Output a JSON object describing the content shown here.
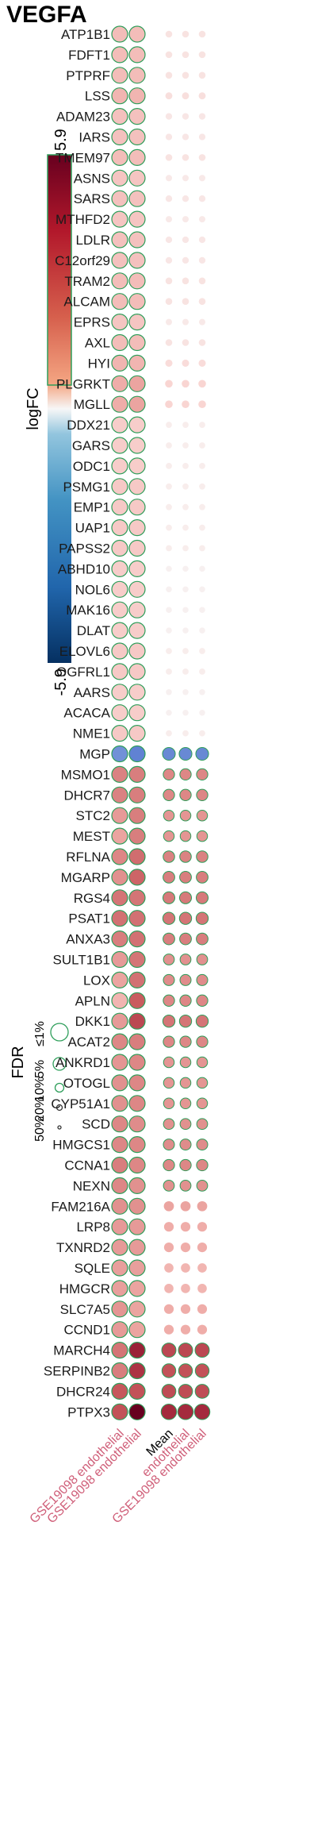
{
  "title": "VEGFA",
  "chart_data": {
    "type": "dot-matrix",
    "color_scale": {
      "label": "logFC",
      "min": -5.9,
      "max": 5.9,
      "min_label": "-5.9",
      "max_label": "5.9",
      "low_color": "#053061",
      "mid_color": "#f7f7f7",
      "high_color": "#67001f"
    },
    "size_legend": {
      "title": "FDR",
      "levels": [
        "50%",
        "20%",
        "10%",
        "5%",
        "≤1%"
      ]
    },
    "columns_left": [
      "GSE19098 endothelial",
      "GSE19098 endothelial"
    ],
    "columns_right": [
      "Mean",
      "endothelial",
      "GSE19098 endothelial"
    ],
    "genes": [
      {
        "name": "ATP1B1",
        "left": [
          1.6,
          1.6
        ],
        "right": [
          0.6,
          0.6,
          0.6
        ]
      },
      {
        "name": "FDFT1",
        "left": [
          1.6,
          1.6
        ],
        "right": [
          0.6,
          0.6,
          0.6
        ]
      },
      {
        "name": "PTPRF",
        "left": [
          1.6,
          1.6
        ],
        "right": [
          0.6,
          0.6,
          0.6
        ]
      },
      {
        "name": "LSS",
        "left": [
          1.8,
          1.8
        ],
        "right": [
          0.7,
          0.7,
          0.7
        ]
      },
      {
        "name": "ADAM23",
        "left": [
          1.5,
          1.5
        ],
        "right": [
          0.5,
          0.5,
          0.5
        ]
      },
      {
        "name": "IARS",
        "left": [
          1.5,
          1.5
        ],
        "right": [
          0.5,
          0.5,
          0.5
        ]
      },
      {
        "name": "TMEM97",
        "left": [
          1.6,
          1.6
        ],
        "right": [
          0.6,
          0.6,
          0.6
        ]
      },
      {
        "name": "ASNS",
        "left": [
          1.4,
          1.4
        ],
        "right": [
          0.4,
          0.4,
          0.4
        ]
      },
      {
        "name": "SARS",
        "left": [
          1.5,
          1.5
        ],
        "right": [
          0.5,
          0.5,
          0.5
        ]
      },
      {
        "name": "MTHFD2",
        "left": [
          1.4,
          1.4
        ],
        "right": [
          0.4,
          0.4,
          0.4
        ]
      },
      {
        "name": "LDLR",
        "left": [
          1.5,
          1.5
        ],
        "right": [
          0.5,
          0.5,
          0.5
        ]
      },
      {
        "name": "C12orf29",
        "left": [
          1.5,
          1.5
        ],
        "right": [
          0.5,
          0.5,
          0.5
        ]
      },
      {
        "name": "TRAM2",
        "left": [
          1.6,
          1.6
        ],
        "right": [
          0.6,
          0.6,
          0.6
        ]
      },
      {
        "name": "ALCAM",
        "left": [
          1.6,
          1.6
        ],
        "right": [
          0.6,
          0.6,
          0.6
        ]
      },
      {
        "name": "EPRS",
        "left": [
          1.4,
          1.4
        ],
        "right": [
          0.4,
          0.4,
          0.4
        ]
      },
      {
        "name": "AXL",
        "left": [
          1.6,
          1.6
        ],
        "right": [
          0.6,
          0.6,
          0.6
        ]
      },
      {
        "name": "HYI",
        "left": [
          1.8,
          1.8
        ],
        "right": [
          0.8,
          0.8,
          0.8
        ]
      },
      {
        "name": "PLGRKT",
        "left": [
          2.0,
          2.2
        ],
        "right": [
          1.0,
          1.0,
          1.0
        ]
      },
      {
        "name": "MGLL",
        "left": [
          2.0,
          2.2
        ],
        "right": [
          1.0,
          1.0,
          1.0
        ]
      },
      {
        "name": "DDX21",
        "left": [
          1.2,
          1.2
        ],
        "right": [
          0.3,
          0.3,
          0.3
        ]
      },
      {
        "name": "GARS",
        "left": [
          1.2,
          1.2
        ],
        "right": [
          0.3,
          0.3,
          0.3
        ]
      },
      {
        "name": "ODC1",
        "left": [
          1.2,
          1.2
        ],
        "right": [
          0.3,
          0.3,
          0.3
        ]
      },
      {
        "name": "PSMG1",
        "left": [
          1.3,
          1.3
        ],
        "right": [
          0.3,
          0.3,
          0.3
        ]
      },
      {
        "name": "EMP1",
        "left": [
          1.3,
          1.3
        ],
        "right": [
          0.3,
          0.3,
          0.3
        ]
      },
      {
        "name": "UAP1",
        "left": [
          1.3,
          1.3
        ],
        "right": [
          0.3,
          0.3,
          0.3
        ]
      },
      {
        "name": "PAPSS2",
        "left": [
          1.3,
          1.3
        ],
        "right": [
          0.3,
          0.3,
          0.3
        ]
      },
      {
        "name": "ABHD10",
        "left": [
          1.2,
          1.2
        ],
        "right": [
          0.2,
          0.2,
          0.2
        ]
      },
      {
        "name": "NOL6",
        "left": [
          1.2,
          1.2
        ],
        "right": [
          0.2,
          0.2,
          0.2
        ]
      },
      {
        "name": "MAK16",
        "left": [
          1.2,
          1.2
        ],
        "right": [
          0.2,
          0.2,
          0.2
        ]
      },
      {
        "name": "DLAT",
        "left": [
          1.2,
          1.2
        ],
        "right": [
          0.2,
          0.2,
          0.2
        ]
      },
      {
        "name": "ELOVL6",
        "left": [
          1.3,
          1.3
        ],
        "right": [
          0.3,
          0.3,
          0.3
        ]
      },
      {
        "name": "OGFRL1",
        "left": [
          1.3,
          1.3
        ],
        "right": [
          0.3,
          0.3,
          0.3
        ]
      },
      {
        "name": "AARS",
        "left": [
          1.2,
          1.2
        ],
        "right": [
          0.2,
          0.2,
          0.2
        ]
      },
      {
        "name": "ACACA",
        "left": [
          1.2,
          1.2
        ],
        "right": [
          0.2,
          0.2,
          0.2
        ]
      },
      {
        "name": "NME1",
        "left": [
          1.3,
          1.3
        ],
        "right": [
          0.3,
          0.3,
          0.3
        ]
      },
      {
        "name": "MGP",
        "left": [
          -3.2,
          -3.8
        ],
        "right": [
          -3.5,
          -3.5,
          -3.5
        ]
      },
      {
        "name": "MSMO1",
        "left": [
          2.9,
          3.0
        ],
        "right": [
          2.8,
          2.8,
          2.8
        ]
      },
      {
        "name": "DHCR7",
        "left": [
          2.9,
          3.0
        ],
        "right": [
          2.8,
          2.8,
          2.8
        ]
      },
      {
        "name": "STC2",
        "left": [
          2.4,
          3.0
        ],
        "right": [
          2.5,
          2.5,
          2.5
        ]
      },
      {
        "name": "MEST",
        "left": [
          2.2,
          3.0
        ],
        "right": [
          2.5,
          2.5,
          2.5
        ]
      },
      {
        "name": "RFLNA",
        "left": [
          2.8,
          3.4
        ],
        "right": [
          2.9,
          2.9,
          2.9
        ]
      },
      {
        "name": "MGARP",
        "left": [
          2.6,
          3.6
        ],
        "right": [
          3.0,
          3.0,
          3.0
        ]
      },
      {
        "name": "RGS4",
        "left": [
          3.2,
          3.2
        ],
        "right": [
          3.1,
          3.1,
          3.1
        ]
      },
      {
        "name": "PSAT1",
        "left": [
          3.3,
          3.3
        ],
        "right": [
          3.2,
          3.2,
          3.2
        ]
      },
      {
        "name": "ANXA3",
        "left": [
          3.0,
          3.3
        ],
        "right": [
          3.0,
          3.0,
          3.0
        ]
      },
      {
        "name": "SULT1B1",
        "left": [
          2.4,
          3.2
        ],
        "right": [
          2.6,
          2.6,
          2.6
        ]
      },
      {
        "name": "LOX",
        "left": [
          2.2,
          3.3
        ],
        "right": [
          2.7,
          2.7,
          2.7
        ]
      },
      {
        "name": "APLN",
        "left": [
          1.8,
          3.8
        ],
        "right": [
          2.8,
          2.8,
          2.8
        ]
      },
      {
        "name": "DKK1",
        "left": [
          2.4,
          4.2
        ],
        "right": [
          3.2,
          3.2,
          3.2
        ]
      },
      {
        "name": "ACAT2",
        "left": [
          2.8,
          3.0
        ],
        "right": [
          2.8,
          2.8,
          2.8
        ]
      },
      {
        "name": "ANKRD1",
        "left": [
          2.5,
          2.8
        ],
        "right": [
          2.5,
          2.5,
          2.5
        ]
      },
      {
        "name": "OTOGL",
        "left": [
          2.6,
          2.8
        ],
        "right": [
          2.5,
          2.5,
          2.5
        ]
      },
      {
        "name": "CYP51A1",
        "left": [
          2.6,
          2.8
        ],
        "right": [
          2.5,
          2.5,
          2.5
        ]
      },
      {
        "name": "SCD",
        "left": [
          2.8,
          2.7
        ],
        "right": [
          2.6,
          2.6,
          2.6
        ]
      },
      {
        "name": "HMGCS1",
        "left": [
          2.8,
          2.8
        ],
        "right": [
          2.7,
          2.7,
          2.7
        ]
      },
      {
        "name": "CCNA1",
        "left": [
          3.0,
          2.8
        ],
        "right": [
          2.8,
          2.8,
          2.8
        ]
      },
      {
        "name": "NEXN",
        "left": [
          2.8,
          2.6
        ],
        "right": [
          2.6,
          2.6,
          2.6
        ]
      },
      {
        "name": "FAM216A",
        "left": [
          2.6,
          2.6
        ],
        "right": [
          2.2,
          2.2,
          2.2
        ]
      },
      {
        "name": "LRP8",
        "left": [
          2.4,
          2.4
        ],
        "right": [
          2.0,
          2.0,
          2.0
        ]
      },
      {
        "name": "TXNRD2",
        "left": [
          2.4,
          2.4
        ],
        "right": [
          2.0,
          2.0,
          2.0
        ]
      },
      {
        "name": "SQLE",
        "left": [
          2.3,
          2.3
        ],
        "right": [
          1.8,
          1.8,
          1.8
        ]
      },
      {
        "name": "HMGCR",
        "left": [
          2.3,
          2.2
        ],
        "right": [
          1.8,
          1.8,
          1.8
        ]
      },
      {
        "name": "SLC7A5",
        "left": [
          2.5,
          2.2
        ],
        "right": [
          2.0,
          2.0,
          2.0
        ]
      },
      {
        "name": "CCND1",
        "left": [
          2.4,
          2.2
        ],
        "right": [
          2.0,
          2.0,
          2.0
        ]
      },
      {
        "name": "MARCH4",
        "left": [
          3.2,
          5.0
        ],
        "right": [
          4.2,
          4.2,
          4.2
        ]
      },
      {
        "name": "SERPINB2",
        "left": [
          3.0,
          4.6
        ],
        "right": [
          4.0,
          4.0,
          4.0
        ]
      },
      {
        "name": "DHCR24",
        "left": [
          3.9,
          4.0
        ],
        "right": [
          4.1,
          4.1,
          4.1
        ]
      },
      {
        "name": "PTPX3",
        "left": [
          4.0,
          5.9
        ],
        "right": [
          4.8,
          4.8,
          4.8
        ]
      }
    ]
  }
}
